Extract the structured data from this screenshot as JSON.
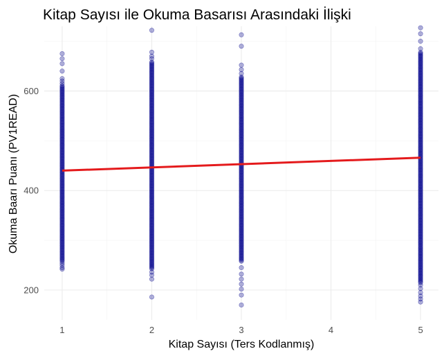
{
  "chart_data": {
    "type": "scatter",
    "title": "Kitap Sayısı ile Okuma Basarısı Arasındaki İlişki",
    "xlabel": "Kitap Sayısı (Ters Kodlanmış)",
    "ylabel": "Okuma Baarı Puanı (PV1READ)",
    "xlim": [
      0.8,
      5.2
    ],
    "ylim": [
      140,
      730
    ],
    "x_ticks": [
      1,
      2,
      3,
      4,
      5
    ],
    "y_ticks": [
      200,
      400,
      600
    ],
    "grid": true,
    "legend": "none",
    "point_color": "#00008B",
    "line_color": "#E41A1C",
    "columns": [
      {
        "x": 1,
        "band": [
          258,
          612
        ],
        "outliers": [
          242,
          245,
          250,
          254,
          615,
          620,
          625,
          640,
          655,
          665,
          675
        ]
      },
      {
        "x": 2,
        "band": [
          243,
          660
        ],
        "outliers": [
          186,
          222,
          230,
          236,
          665,
          670,
          678,
          722
        ]
      },
      {
        "x": 3,
        "band": [
          258,
          628
        ],
        "outliers": [
          170,
          190,
          202,
          212,
          222,
          232,
          245,
          635,
          643,
          652,
          690,
          713
        ]
      },
      {
        "x": 5,
        "band": [
          215,
          678
        ],
        "outliers": [
          176,
          182,
          188,
          195,
          203,
          210,
          685,
          700,
          715,
          727
        ]
      }
    ],
    "trend_line": {
      "x": [
        1,
        5
      ],
      "y": [
        440,
        466
      ]
    }
  }
}
